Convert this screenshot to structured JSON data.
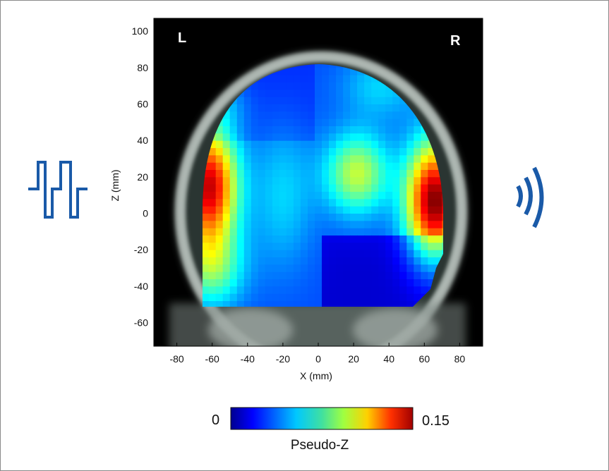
{
  "chart_data": {
    "type": "heatmap",
    "title": "",
    "xlabel": "X (mm)",
    "ylabel": "Z (mm)",
    "xlim": [
      -93,
      93
    ],
    "ylim": [
      -73,
      107
    ],
    "xticks": [
      -80,
      -60,
      -40,
      -20,
      0,
      20,
      40,
      60,
      80
    ],
    "yticks": [
      100,
      80,
      60,
      40,
      20,
      0,
      -20,
      -40,
      -60
    ],
    "corner_labels": {
      "left": "L",
      "right": "R"
    },
    "colorbar": {
      "min_label": "0",
      "max_label": "0.15",
      "title": "Pseudo-Z",
      "range": [
        0,
        0.15
      ],
      "colormap": "jet"
    },
    "peaks": [
      {
        "x": 66,
        "z": 7,
        "value": 0.15
      },
      {
        "x": -62,
        "z": 15,
        "value": 0.14
      },
      {
        "x": 22,
        "z": 22,
        "value": 0.085
      },
      {
        "x": -60,
        "z": -30,
        "value": 0.07
      }
    ],
    "grid": false,
    "legend": "none"
  },
  "icons": {
    "left": "square-wave-icon",
    "right": "sound-waves-icon",
    "color": "#1a5aa8"
  }
}
